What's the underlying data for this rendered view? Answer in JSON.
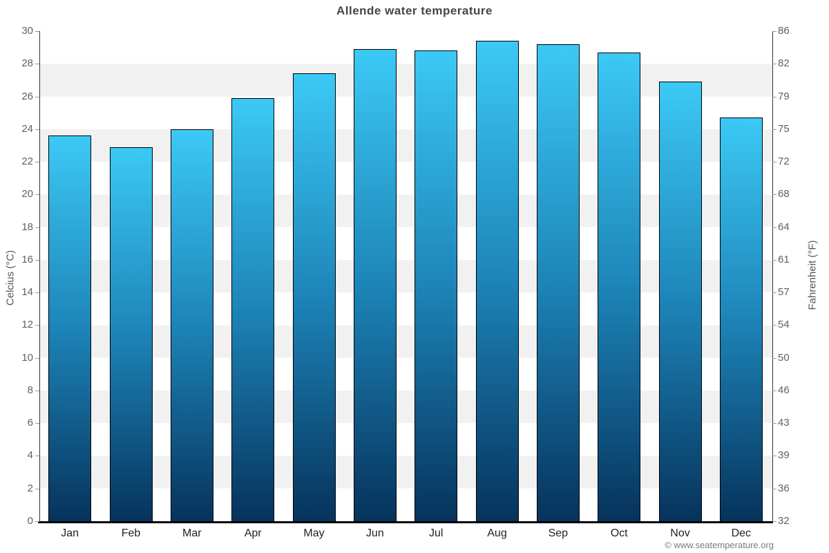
{
  "title": "Allende water temperature",
  "watermark": "© www.seatemperature.org",
  "chart_data": {
    "type": "bar",
    "title": "Allende water temperature",
    "categories": [
      "Jan",
      "Feb",
      "Mar",
      "Apr",
      "May",
      "Jun",
      "Jul",
      "Aug",
      "Sep",
      "Oct",
      "Nov",
      "Dec"
    ],
    "series": [
      {
        "name": "Water temperature (°C)",
        "values": [
          23.6,
          22.9,
          24.0,
          25.9,
          27.4,
          28.9,
          28.8,
          29.4,
          29.2,
          28.7,
          26.9,
          24.7
        ]
      }
    ],
    "xlabel": "",
    "ylabel_left": "Celcius (°C)",
    "ylabel_right": "Fahrenheit (°F)",
    "ylim": [
      0,
      30
    ],
    "yticks_left": [
      0,
      2,
      4,
      6,
      8,
      10,
      12,
      14,
      16,
      18,
      20,
      22,
      24,
      26,
      28,
      30
    ],
    "yticks_right": [
      32,
      36,
      39,
      43,
      46,
      50,
      54,
      57,
      61,
      64,
      68,
      72,
      75,
      79,
      82,
      86
    ],
    "grid": "alternating horizontal 2-degree bands",
    "legend": "none",
    "colors": {
      "bar_top": "#3cc9f5",
      "bar_mid": "#1d84b8",
      "bar_bottom": "#06335c",
      "bar_border": "#000000",
      "band_light": "#ffffff",
      "band_dark": "#f1f1f1",
      "axis_line": "#333333",
      "tick_label": "#606060",
      "month_label": "#222222",
      "title": "#454545",
      "watermark": "#7a7a7a"
    }
  }
}
